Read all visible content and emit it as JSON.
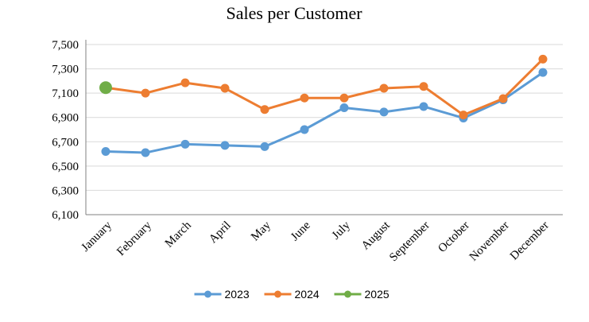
{
  "chart_data": {
    "type": "line",
    "title": "Sales per Customer",
    "xlabel": "",
    "ylabel": "",
    "categories": [
      "January",
      "February",
      "March",
      "April",
      "May",
      "June",
      "July",
      "August",
      "September",
      "October",
      "November",
      "December"
    ],
    "y_ticks": [
      "6,100",
      "6,300",
      "6,500",
      "6,700",
      "6,900",
      "7,100",
      "7,300",
      "7,500"
    ],
    "ylim": [
      6100,
      7500
    ],
    "grid": true,
    "legend_position": "bottom",
    "series": [
      {
        "name": "2023",
        "color": "#5b9bd5",
        "values": [
          6620,
          6610,
          6680,
          6670,
          6660,
          6800,
          6980,
          6945,
          6990,
          6895,
          7045,
          7270
        ]
      },
      {
        "name": "2024",
        "color": "#ed7d31",
        "values": [
          7145,
          7100,
          7185,
          7140,
          6965,
          7060,
          7060,
          7140,
          7155,
          6920,
          7055,
          7380
        ]
      },
      {
        "name": "2025",
        "color": "#70ad47",
        "values": [
          7145,
          null,
          null,
          null,
          null,
          null,
          null,
          null,
          null,
          null,
          null,
          null
        ]
      }
    ]
  }
}
